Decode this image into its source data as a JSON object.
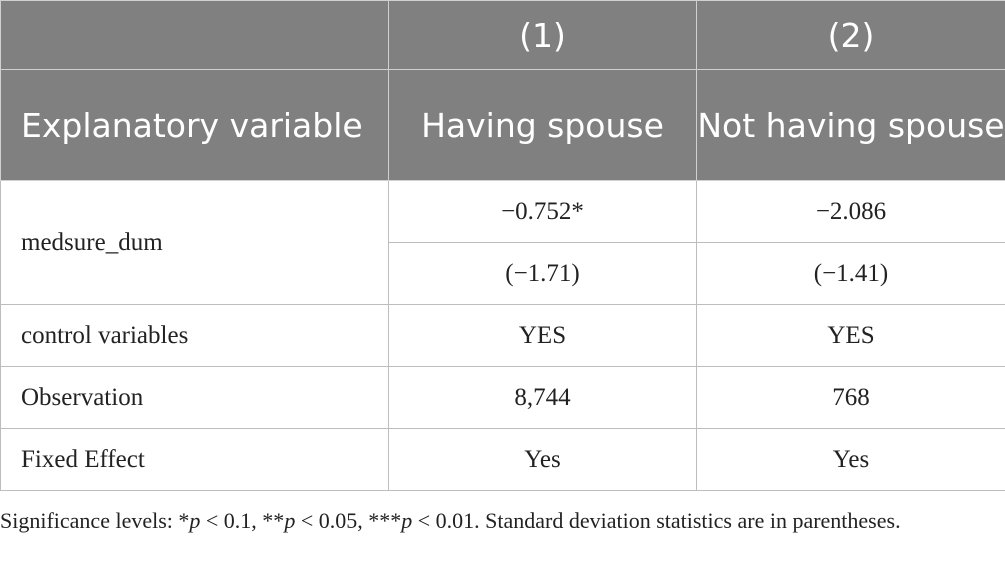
{
  "header": {
    "col_numbers": [
      "(1)",
      "(2)"
    ],
    "explanatory_label": "Explanatory variable",
    "col_titles": [
      "Having spouse",
      "Not having spouse"
    ]
  },
  "rows": {
    "medsure": {
      "label": "medsure_dum",
      "coef": [
        "−0.752*",
        "−2.086"
      ],
      "tstat": [
        "(−1.71)",
        "(−1.41)"
      ]
    },
    "controls": {
      "label": "control variables",
      "values": [
        "YES",
        "YES"
      ]
    },
    "observation": {
      "label": "Observation",
      "values": [
        "8,744",
        "768"
      ]
    },
    "fixed_effect": {
      "label": "Fixed Effect",
      "values": [
        "Yes",
        "Yes"
      ]
    }
  },
  "note": {
    "prefix": "Significance levels: *",
    "p1": "p",
    "t1": " < 0.1, **",
    "p2": "p",
    "t2": " < 0.05, ***",
    "p3": "p",
    "t3": " < 0.01. Standard deviation statistics are in parentheses."
  }
}
